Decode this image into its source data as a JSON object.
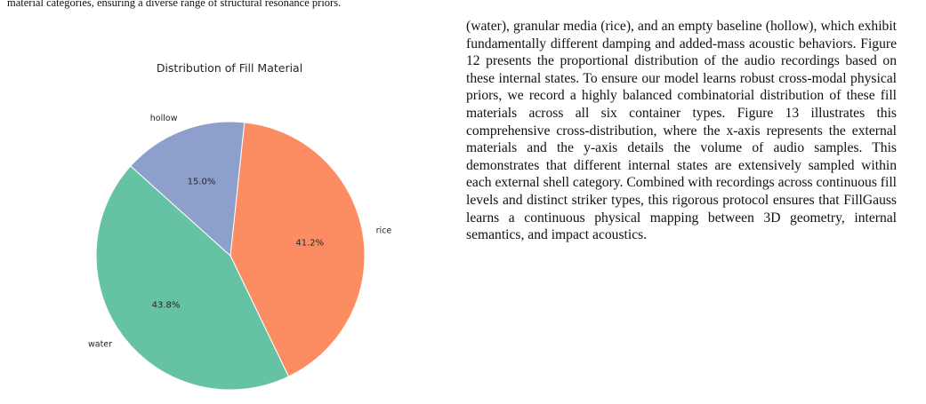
{
  "caption_tail": "material categories, ensuring a diverse range of structural resonance priors.",
  "body_paragraph": "(water), granular media (rice), and an empty baseline (hollow), which exhibit fundamentally different damping and added-mass acoustic behaviors. Figure 12 presents the proportional distribution of the audio recordings based on these internal states. To ensure our model learns robust cross-modal physical priors, we record a highly balanced combinatorial distribution of these fill materials across all six container types. Figure 13 illustrates this comprehensive cross-distribution, where the x-axis represents the external materials and the y-axis details the volume of audio samples. This demonstrates that different internal states are extensively sampled within each external shell category. Combined with recordings across continuous fill levels and distinct striker types, this rigorous protocol ensures that FillGauss learns a continuous physical mapping between 3D geometry, internal semantics, and impact acous­tics.",
  "chart_data": {
    "type": "pie",
    "title": "Distribution of Fill Material",
    "slices": [
      {
        "label": "rice",
        "value": 41.2,
        "pct_label": "41.2%",
        "color": "#fc8d62"
      },
      {
        "label": "water",
        "value": 43.8,
        "pct_label": "43.8%",
        "color": "#66c2a5"
      },
      {
        "label": "hollow",
        "value": 15.0,
        "pct_label": "15.0%",
        "color": "#8da0cb"
      }
    ],
    "start_angle_deg": 84,
    "direction": "clockwise",
    "edge_color": "#ffffff"
  }
}
